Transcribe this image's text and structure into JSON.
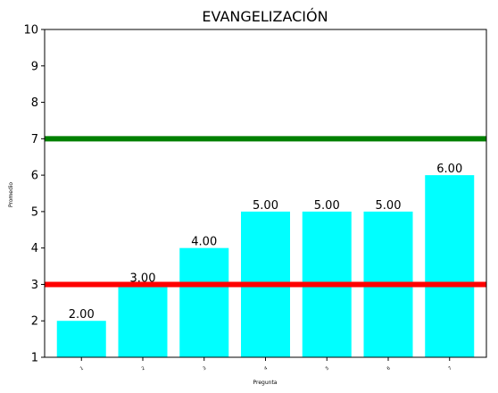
{
  "chart_data": {
    "type": "bar",
    "title": "EVANGELIZACIÓN",
    "xlabel": "Pregunta",
    "ylabel": "Promedio",
    "ylim": [
      1,
      10
    ],
    "yticks": [
      "1",
      "2",
      "3",
      "4",
      "5",
      "6",
      "7",
      "8",
      "9",
      "10"
    ],
    "categories": [
      "1",
      "2",
      "3",
      "4",
      "5",
      "6",
      "7"
    ],
    "values": [
      2,
      3,
      4,
      5,
      5,
      5,
      6
    ],
    "value_labels": [
      "2.00",
      "3.00",
      "4.00",
      "5.00",
      "5.00",
      "5.00",
      "6.00"
    ],
    "bar_color": "#00ffff",
    "reference_lines": [
      {
        "value": 7,
        "color": "#008000"
      },
      {
        "value": 3,
        "color": "#ff0000"
      }
    ],
    "grid": false
  }
}
